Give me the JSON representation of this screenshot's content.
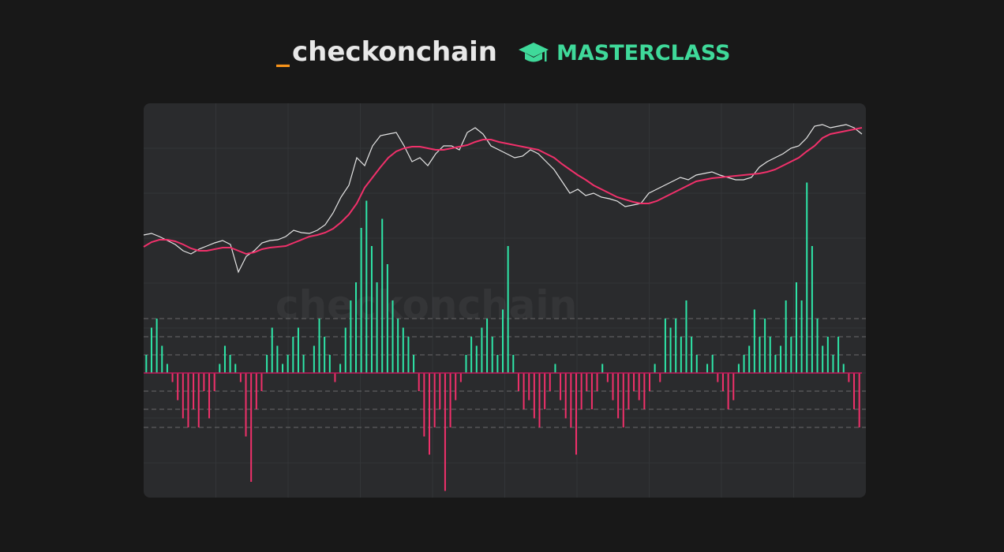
{
  "header": {
    "prefix": "_",
    "brand": "checkonchain",
    "badge": "MASTERCLASS"
  },
  "chart_data": {
    "type": "line",
    "watermark": "checkonchain",
    "price_ylim": [
      0,
      210
    ],
    "series": [
      {
        "name": "price",
        "color": "#e6e6e6",
        "values": [
          62,
          64,
          60,
          55,
          50,
          42,
          38,
          44,
          48,
          52,
          55,
          50,
          15,
          35,
          42,
          52,
          55,
          56,
          60,
          68,
          65,
          64,
          68,
          75,
          90,
          110,
          125,
          160,
          150,
          175,
          188,
          190,
          192,
          175,
          155,
          160,
          150,
          165,
          175,
          175,
          170,
          192,
          198,
          190,
          175,
          170,
          165,
          160,
          162,
          170,
          165,
          155,
          145,
          130,
          115,
          120,
          112,
          115,
          110,
          108,
          105,
          98,
          100,
          102,
          115,
          120,
          125,
          130,
          135,
          132,
          138,
          140,
          142,
          138,
          135,
          132,
          132,
          135,
          148,
          155,
          160,
          165,
          172,
          175,
          185,
          200,
          202,
          198,
          200,
          202,
          198,
          190
        ]
      },
      {
        "name": "moving-average",
        "color": "#f0306a",
        "values": [
          47,
          53,
          56,
          56,
          54,
          50,
          45,
          42,
          42,
          44,
          46,
          46,
          42,
          38,
          40,
          44,
          46,
          47,
          48,
          52,
          56,
          60,
          62,
          65,
          70,
          78,
          88,
          102,
          122,
          135,
          148,
          160,
          168,
          172,
          174,
          174,
          172,
          170,
          170,
          172,
          174,
          176,
          180,
          183,
          183,
          180,
          178,
          176,
          174,
          172,
          170,
          165,
          160,
          152,
          145,
          138,
          132,
          125,
          120,
          115,
          110,
          107,
          104,
          102,
          102,
          105,
          110,
          115,
          120,
          125,
          130,
          132,
          134,
          135,
          136,
          137,
          138,
          139,
          140,
          142,
          145,
          150,
          155,
          160,
          168,
          175,
          185,
          190,
          192,
          194,
          196,
          198
        ]
      }
    ],
    "oscillator": {
      "ylim": [
        -6.8,
        10
      ],
      "zero_color": "#c2185b",
      "positive_color": "#2ee6a8",
      "negative_color": "#f0306a",
      "levels": [
        3,
        2,
        1,
        -1,
        -2,
        -3
      ],
      "values": [
        1,
        2.5,
        3,
        1.5,
        0.5,
        -0.5,
        -1.5,
        -2.5,
        -3,
        -2,
        -3,
        -1,
        -2.5,
        -1,
        0.5,
        1.5,
        1,
        0.5,
        -0.5,
        -3.5,
        -6,
        -2,
        -1,
        1,
        2.5,
        1.5,
        0.5,
        1,
        2,
        2.5,
        1,
        0,
        1.5,
        3,
        2,
        1,
        -0.5,
        0.5,
        2.5,
        4,
        5,
        8,
        9.5,
        7,
        5,
        8.5,
        6,
        4,
        3,
        2.5,
        2,
        1,
        -1,
        -3.5,
        -4.5,
        -3,
        -2,
        -6.5,
        -3,
        -1.5,
        -0.5,
        1,
        2,
        1.5,
        2.5,
        3,
        2,
        1,
        3.5,
        7,
        1,
        -1,
        -2,
        -1.5,
        -2.5,
        -3,
        -2,
        -1,
        0.5,
        -1.5,
        -2.5,
        -3,
        -4.5,
        -2,
        -1,
        -2,
        -1,
        0.5,
        -0.5,
        -1.5,
        -2.5,
        -3,
        -2,
        -1,
        -1.5,
        -2,
        -1,
        0.5,
        -0.5,
        3,
        2.5,
        3,
        2,
        4,
        2,
        1,
        0,
        0.5,
        1,
        -0.5,
        -1,
        -2,
        -1.5,
        0.5,
        1,
        1.5,
        3.5,
        2,
        3,
        2,
        1,
        1.5,
        4,
        2,
        5,
        4,
        10.5,
        7,
        3,
        1.5,
        2,
        1,
        2,
        0.5,
        -0.5,
        -2,
        -3
      ]
    }
  }
}
